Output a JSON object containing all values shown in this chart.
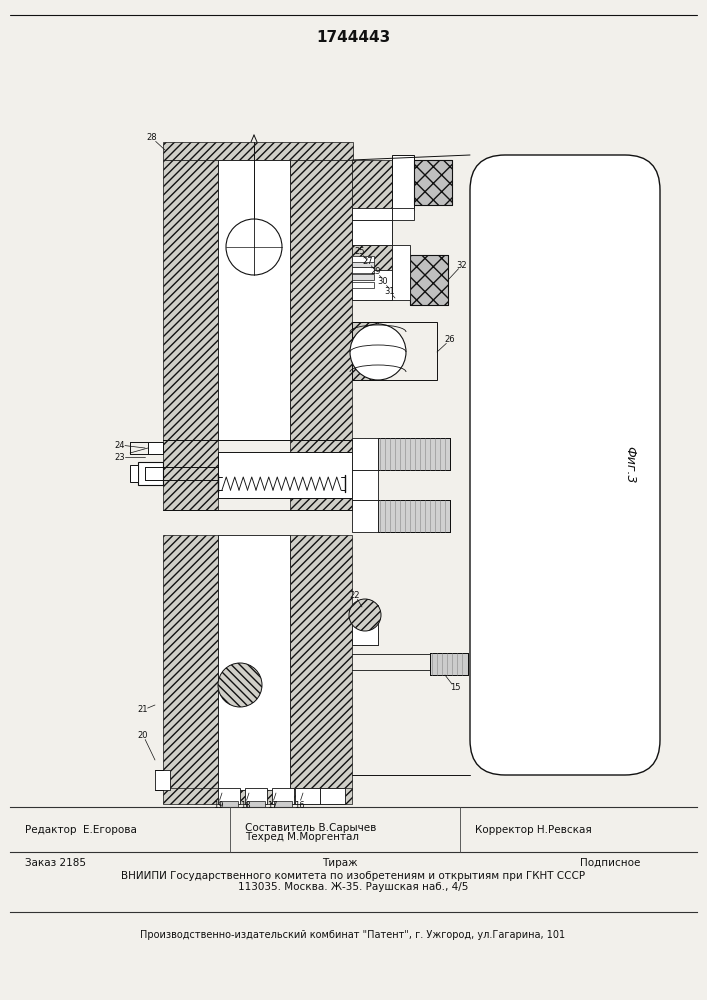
{
  "title_number": "1744443",
  "background_color": "#f2f0eb",
  "line_color": "#111111",
  "hatch_color": "#d0cfc8",
  "editor_text": "Редактор  Е.Егорова",
  "composer_text": "Составитель В.Сарычев\nТехред М.Моргентал",
  "corrector_text": "Корректор Н.Ревская",
  "order_text": "Заказ 2185",
  "tirazh_text": "Тираж",
  "podpisnoe_text": "Подписное",
  "vniip_line1": "ВНИИПИ Государственного комитета по изобретениям и открытиям при ГКНТ СССР",
  "vniip_line2": "113035. Москва. Ж-35. Раушская наб., 4/5",
  "factory_text": "Производственно-издательский комбинат \"Патент\", г. Ужгород, ул.Гагарина, 101",
  "footer_fontsize": 7.5,
  "footer_small_fontsize": 7.0
}
